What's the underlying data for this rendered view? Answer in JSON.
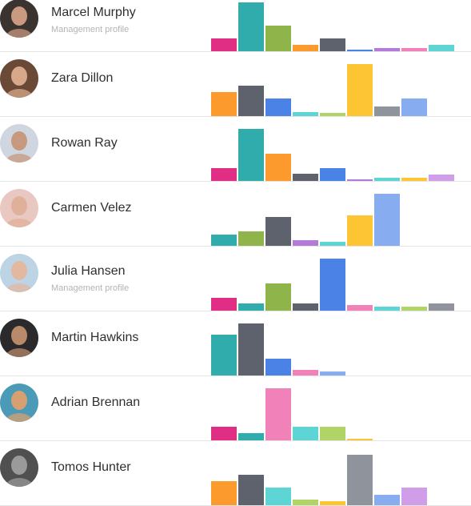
{
  "colors": {
    "magenta": "#df2e84",
    "teal": "#30acac",
    "olive": "#8fb44a",
    "orange": "#fc9a2e",
    "slate": "#5e626c",
    "blue": "#4b82e6",
    "purple": "#b37ad9",
    "pink": "#f081b9",
    "cyan": "#5dd5d5",
    "amber": "#fdc534",
    "gray": "#8f939c",
    "lightblue": "#87acf0",
    "lime": "#b0d466",
    "lavender": "#d09de9"
  },
  "people": [
    {
      "name": "Marcel Murphy",
      "subtitle": "Management profile",
      "avatar_icon": "person-portrait",
      "avatar_bg": "#3a3330",
      "avatar_face": "#c99a80",
      "bars": [
        {
          "color": "magenta",
          "value": 0.25
        },
        {
          "color": "teal",
          "value": 0.95
        },
        {
          "color": "olive",
          "value": 0.5
        },
        {
          "color": "orange",
          "value": 0.13
        },
        {
          "color": "slate",
          "value": 0.25
        },
        {
          "color": "blue",
          "value": 0.03
        },
        {
          "color": "purple",
          "value": 0.07
        },
        {
          "color": "pink",
          "value": 0.07
        },
        {
          "color": "cyan",
          "value": 0.13
        }
      ]
    },
    {
      "name": "Zara Dillon",
      "subtitle": "",
      "avatar_icon": "person-portrait",
      "avatar_bg": "#6a4a36",
      "avatar_face": "#d8a88a",
      "bars": [
        {
          "color": "orange",
          "value": 0.45
        },
        {
          "color": "slate",
          "value": 0.58
        },
        {
          "color": "blue",
          "value": 0.34
        },
        {
          "color": "cyan",
          "value": 0.08
        },
        {
          "color": "lime",
          "value": 0.06
        },
        {
          "color": "amber",
          "value": 0.98
        },
        {
          "color": "gray",
          "value": 0.18
        },
        {
          "color": "lightblue",
          "value": 0.34
        }
      ]
    },
    {
      "name": "Rowan Ray",
      "subtitle": "",
      "avatar_icon": "person-portrait",
      "avatar_bg": "#cfd6e0",
      "avatar_face": "#c79a7e",
      "bars": [
        {
          "color": "magenta",
          "value": 0.24
        },
        {
          "color": "teal",
          "value": 0.98
        },
        {
          "color": "orange",
          "value": 0.52
        },
        {
          "color": "slate",
          "value": 0.13
        },
        {
          "color": "blue",
          "value": 0.24
        },
        {
          "color": "purple",
          "value": 0.03
        },
        {
          "color": "cyan",
          "value": 0.06
        },
        {
          "color": "amber",
          "value": 0.06
        },
        {
          "color": "lavender",
          "value": 0.12
        }
      ]
    },
    {
      "name": "Carmen Velez",
      "subtitle": "",
      "avatar_icon": "person-portrait",
      "avatar_bg": "#e8c8c0",
      "avatar_face": "#e0b09a",
      "bars": [
        {
          "color": "teal",
          "value": 0.21
        },
        {
          "color": "olive",
          "value": 0.27
        },
        {
          "color": "slate",
          "value": 0.55
        },
        {
          "color": "purple",
          "value": 0.1
        },
        {
          "color": "cyan",
          "value": 0.07
        },
        {
          "color": "amber",
          "value": 0.57
        },
        {
          "color": "lightblue",
          "value": 0.98
        }
      ]
    },
    {
      "name": "Julia Hansen",
      "subtitle": "Management profile",
      "avatar_icon": "person-portrait",
      "avatar_bg": "#bcd4e4",
      "avatar_face": "#e2b8a0",
      "bars": [
        {
          "color": "magenta",
          "value": 0.24
        },
        {
          "color": "teal",
          "value": 0.13
        },
        {
          "color": "olive",
          "value": 0.52
        },
        {
          "color": "slate",
          "value": 0.13
        },
        {
          "color": "blue",
          "value": 0.98
        },
        {
          "color": "pink",
          "value": 0.1
        },
        {
          "color": "cyan",
          "value": 0.07
        },
        {
          "color": "lime",
          "value": 0.07
        },
        {
          "color": "gray",
          "value": 0.13
        }
      ]
    },
    {
      "name": "Martin Hawkins",
      "subtitle": "",
      "avatar_icon": "person-portrait",
      "avatar_bg": "#2a2a2c",
      "avatar_face": "#b88a6a",
      "bars": [
        {
          "color": "teal",
          "value": 0.78
        },
        {
          "color": "slate",
          "value": 0.98
        },
        {
          "color": "blue",
          "value": 0.32
        },
        {
          "color": "pink",
          "value": 0.11
        },
        {
          "color": "lightblue",
          "value": 0.07
        }
      ]
    },
    {
      "name": "Adrian Brennan",
      "subtitle": "",
      "avatar_icon": "person-portrait",
      "avatar_bg": "#4a9ab8",
      "avatar_face": "#d8a070",
      "bars": [
        {
          "color": "magenta",
          "value": 0.25
        },
        {
          "color": "teal",
          "value": 0.13
        },
        {
          "color": "pink",
          "value": 0.98
        },
        {
          "color": "cyan",
          "value": 0.25
        },
        {
          "color": "lime",
          "value": 0.25
        },
        {
          "color": "amber",
          "value": 0.03
        }
      ]
    },
    {
      "name": "Tomos Hunter",
      "subtitle": "",
      "avatar_icon": "person-portrait",
      "avatar_bg": "#505050",
      "avatar_face": "#9a9a9a",
      "bars": [
        {
          "color": "orange",
          "value": 0.45
        },
        {
          "color": "slate",
          "value": 0.57
        },
        {
          "color": "cyan",
          "value": 0.34
        },
        {
          "color": "lime",
          "value": 0.1
        },
        {
          "color": "amber",
          "value": 0.07
        },
        {
          "color": "gray",
          "value": 0.96
        },
        {
          "color": "lightblue",
          "value": 0.2
        },
        {
          "color": "lavender",
          "value": 0.34
        }
      ]
    }
  ]
}
